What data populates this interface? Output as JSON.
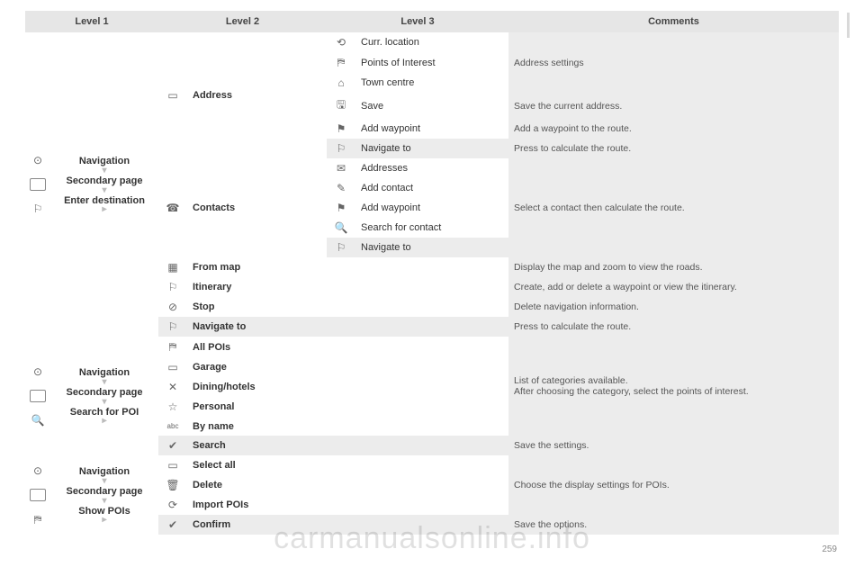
{
  "headers": {
    "l1": "Level 1",
    "l2": "Level 2",
    "l3": "Level 3",
    "com": "Comments"
  },
  "block1": {
    "nav_lines": [
      "Navigation",
      "Secondary page",
      "Enter destination"
    ],
    "groups": {
      "address": {
        "label": "Address",
        "rows": [
          {
            "l3": "Curr. location",
            "icon": "⟲",
            "grey": false
          },
          {
            "l3": "Points of Interest",
            "icon": "⛿",
            "grey": false
          },
          {
            "l3": "Town centre",
            "icon": "⌂",
            "grey": false
          },
          {
            "l3": "Save",
            "icon": "🖫",
            "grey": false,
            "com": "Save the current address."
          },
          {
            "l3": "Add waypoint",
            "icon": "⚑",
            "grey": false,
            "com": "Add a waypoint to the route."
          },
          {
            "l3": "Navigate to",
            "icon": "⚐",
            "grey": true,
            "com": "Press to calculate the route."
          }
        ],
        "topcom": "Address settings"
      },
      "contacts": {
        "label": "Contacts",
        "rows": [
          {
            "l3": "Addresses",
            "icon": "✉",
            "grey": false
          },
          {
            "l3": "Add contact",
            "icon": "✎",
            "grey": false
          },
          {
            "l3": "Add waypoint",
            "icon": "⚑",
            "grey": false
          },
          {
            "l3": "Search for contact",
            "icon": "🔍",
            "grey": false
          },
          {
            "l3": "Navigate to",
            "icon": "⚐",
            "grey": true
          }
        ],
        "com": "Select a contact then calculate the route."
      },
      "singles": [
        {
          "l2": "From map",
          "icon": "▦",
          "grey": false,
          "com": "Display the map and zoom to view the roads."
        },
        {
          "l2": "Itinerary",
          "icon": "⚐",
          "grey": false,
          "com": "Create, add or delete a waypoint or view the itinerary."
        },
        {
          "l2": "Stop",
          "icon": "⊘",
          "grey": false,
          "com": "Delete navigation information."
        },
        {
          "l2": "Navigate to",
          "icon": "⚐",
          "grey": true,
          "com": "Press to calculate the route."
        }
      ]
    }
  },
  "block2": {
    "nav_lines": [
      "Navigation",
      "Secondary page",
      "Search for POI"
    ],
    "rows": [
      {
        "l2": "All POIs",
        "icon": "⛿",
        "grey": false
      },
      {
        "l2": "Garage",
        "icon": "▭",
        "grey": false
      },
      {
        "l2": "Dining/hotels",
        "icon": "✕",
        "grey": false
      },
      {
        "l2": "Personal",
        "icon": "☆",
        "grey": false
      },
      {
        "l2": "By name",
        "icon": "abc",
        "grey": false
      },
      {
        "l2": "Search",
        "icon": "✔",
        "grey": true,
        "com": "Save the settings."
      }
    ],
    "topcom": "List of categories available.\nAfter choosing the category, select the points of interest."
  },
  "block3": {
    "nav_lines": [
      "Navigation",
      "Secondary page",
      "Show POIs"
    ],
    "rows": [
      {
        "l2": "Select all",
        "icon": "▭",
        "grey": false
      },
      {
        "l2": "Delete",
        "icon": "🗑",
        "grey": false
      },
      {
        "l2": "Import POIs",
        "icon": "⟳",
        "grey": false
      },
      {
        "l2": "Confirm",
        "icon": "✔",
        "grey": true,
        "com": "Save the options."
      }
    ],
    "topcom": "Choose the display settings for POIs."
  },
  "watermark": "carmanualsonline.info",
  "pagenum": "259"
}
